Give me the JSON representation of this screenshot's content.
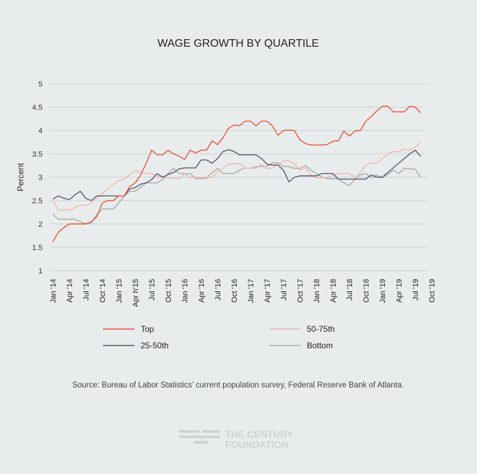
{
  "chart_data": {
    "type": "line",
    "title": "WAGE GROWTH BY QUARTILE",
    "xlabel": "",
    "ylabel": "Percent",
    "ylim": [
      1,
      5
    ],
    "yticks": [
      "1",
      "1.5",
      "2",
      "2.5",
      "3",
      "3.5",
      "4",
      "4.5",
      "5"
    ],
    "ytick_values": [
      1,
      1.5,
      2,
      2.5,
      3,
      3.5,
      4,
      4.5,
      5
    ],
    "xticks": [
      "Jan '14",
      "Apr '14",
      "Jul '14",
      "Oct '14",
      "Jan '15",
      "Apr h'15",
      "Jul '15",
      "Oct '15",
      "Jan '16",
      "Apr '16",
      "Jul '16",
      "Oct '16",
      "Jan '17",
      "Apr '17",
      "Jul '17",
      "Oct '17",
      "Jan '18",
      "Apr '18",
      "Jul '18",
      "Oct '18",
      "Jan '19",
      "Apr '19",
      "Jul '19",
      "Oct '19"
    ],
    "x_note": "monthly observations starting Jan 2014",
    "grid": true,
    "legend_placement": "bottom",
    "series": [
      {
        "name": "Top",
        "color": "#e8533b",
        "values": [
          1.62,
          1.82,
          1.92,
          2.0,
          2.0,
          2.0,
          2.0,
          2.05,
          2.15,
          2.45,
          2.5,
          2.5,
          2.6,
          2.6,
          2.8,
          2.88,
          3.05,
          3.3,
          3.58,
          3.48,
          3.48,
          3.58,
          3.5,
          3.45,
          3.38,
          3.58,
          3.52,
          3.58,
          3.58,
          3.78,
          3.7,
          3.85,
          4.05,
          4.12,
          4.1,
          4.2,
          4.2,
          4.1,
          4.2,
          4.2,
          4.1,
          3.9,
          4.0,
          4.01,
          4.0,
          3.8,
          3.72,
          3.69,
          3.69,
          3.69,
          3.7,
          3.77,
          3.78,
          3.99,
          3.88,
          3.99,
          4.0,
          4.2,
          4.3,
          4.42,
          4.52,
          4.52,
          4.4,
          4.4,
          4.4,
          4.52,
          4.5,
          4.38
        ]
      },
      {
        "name": "50-75th",
        "color": "#f0b6a8",
        "values": [
          2.49,
          2.3,
          2.3,
          2.3,
          2.35,
          2.4,
          2.4,
          2.45,
          2.55,
          2.65,
          2.75,
          2.85,
          2.92,
          2.95,
          3.05,
          3.15,
          3.1,
          3.08,
          3.08,
          3.02,
          3.0,
          2.99,
          2.98,
          2.97,
          3.08,
          3.0,
          3.0,
          3.0,
          3.0,
          3.0,
          3.12,
          3.2,
          3.28,
          3.29,
          3.29,
          3.2,
          3.19,
          3.19,
          3.28,
          3.19,
          3.19,
          3.28,
          3.35,
          3.35,
          3.28,
          3.15,
          3.2,
          3.05,
          2.99,
          2.99,
          2.99,
          3.05,
          3.08,
          3.08,
          3.08,
          2.99,
          3.1,
          3.26,
          3.3,
          3.3,
          3.4,
          3.5,
          3.55,
          3.55,
          3.6,
          3.58,
          3.65,
          3.75
        ]
      },
      {
        "name": "25-50th",
        "color": "#565a70",
        "values": [
          2.53,
          2.6,
          2.55,
          2.52,
          2.62,
          2.7,
          2.55,
          2.5,
          2.6,
          2.6,
          2.6,
          2.6,
          2.6,
          2.6,
          2.75,
          2.78,
          2.85,
          2.88,
          2.95,
          3.08,
          3.0,
          3.06,
          3.1,
          3.18,
          3.2,
          3.2,
          3.2,
          3.37,
          3.37,
          3.3,
          3.4,
          3.55,
          3.59,
          3.55,
          3.48,
          3.48,
          3.48,
          3.48,
          3.4,
          3.28,
          3.26,
          3.26,
          3.15,
          2.9,
          3.0,
          3.03,
          3.03,
          3.03,
          3.03,
          3.08,
          3.08,
          3.08,
          2.96,
          2.96,
          2.96,
          2.96,
          2.96,
          2.96,
          3.05,
          3.0,
          3.0,
          3.1,
          3.2,
          3.3,
          3.4,
          3.5,
          3.58,
          3.45
        ]
      },
      {
        "name": "Bottom",
        "color": "#a9a9a9",
        "values": [
          2.21,
          2.1,
          2.1,
          2.1,
          2.1,
          2.05,
          2.0,
          2.02,
          2.2,
          2.32,
          2.32,
          2.32,
          2.45,
          2.6,
          2.7,
          2.7,
          2.78,
          2.88,
          2.88,
          2.88,
          2.95,
          3.08,
          3.19,
          3.08,
          3.08,
          3.08,
          2.97,
          2.97,
          2.98,
          3.1,
          3.19,
          3.08,
          3.08,
          3.08,
          3.15,
          3.2,
          3.19,
          3.23,
          3.23,
          3.23,
          3.31,
          3.31,
          3.23,
          3.23,
          3.19,
          3.19,
          3.25,
          3.15,
          3.08,
          3.0,
          2.97,
          2.97,
          2.97,
          2.88,
          2.82,
          2.95,
          3.05,
          3.08,
          2.99,
          3.05,
          2.99,
          3.06,
          3.15,
          3.08,
          3.19,
          3.18,
          3.17,
          3.0
        ]
      }
    ]
  },
  "source": "Source:   Bureau of Labor Statistics’ current population survey, Federal Reserve Bank of Atlanta.",
  "logo": {
    "line1": "THE CENTURY",
    "line2": "FOUNDATION"
  }
}
